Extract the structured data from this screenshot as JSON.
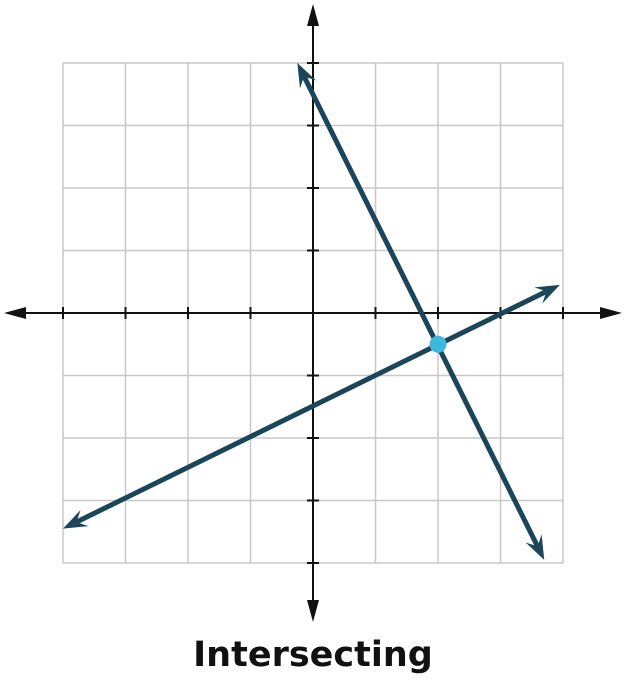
{
  "chart_data": {
    "type": "line",
    "title": "Intersecting",
    "xlabel": "",
    "ylabel": "",
    "xlim": [
      -4,
      4
    ],
    "ylim": [
      -4,
      4
    ],
    "grid": true,
    "tick_step": 1,
    "series": [
      {
        "x": [
          -0.25,
          3.7
        ],
        "y": [
          4.0,
          -3.95
        ]
      },
      {
        "x": [
          -4.0,
          3.95
        ],
        "y": [
          -3.45,
          0.45
        ]
      }
    ],
    "intersection": {
      "x": 2,
      "y": -0.5
    }
  },
  "colors": {
    "line": "#1b4558",
    "point": "#3fb8e0",
    "grid": "#c8c8c8",
    "axis": "#111111"
  }
}
